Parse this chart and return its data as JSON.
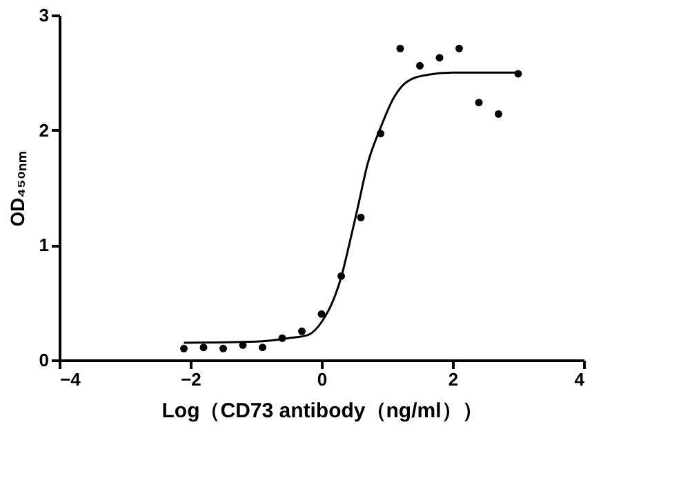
{
  "chart_data": {
    "type": "scatter",
    "xlabel": "Log（CD73 antibody（ng/ml））",
    "ylabel": "OD₄₅₀ₙₘ",
    "xlim": [
      -4,
      4
    ],
    "xticks": [
      -4,
      -2,
      0,
      2,
      4
    ],
    "ylim": [
      0,
      3
    ],
    "yticks": [
      0,
      1,
      2,
      3
    ],
    "grid": false,
    "marker": "circle",
    "series": [
      {
        "color": "#000000",
        "x": [
          -2.1,
          -1.8,
          -1.5,
          -1.2,
          -0.9,
          -0.6,
          -0.3,
          0.0,
          0.3,
          0.6,
          0.9,
          1.2,
          1.5,
          1.8,
          2.1,
          2.4,
          2.7,
          3.0
        ],
        "values": [
          0.1,
          0.11,
          0.1,
          0.13,
          0.11,
          0.19,
          0.25,
          0.4,
          0.73,
          1.24,
          1.97,
          2.71,
          2.56,
          2.63,
          2.71,
          2.24,
          2.14,
          2.49
        ]
      },
      {
        "type": "line",
        "color": "#000000",
        "marker": "none",
        "line_style": "solid",
        "x": [
          -2.1,
          -1.0,
          -0.5,
          -0.2,
          0.0,
          0.2,
          0.3,
          0.4,
          0.55,
          0.7,
          0.9,
          1.1,
          1.3,
          1.6,
          2.0,
          3.0
        ],
        "values": [
          0.15,
          0.16,
          0.19,
          0.22,
          0.33,
          0.55,
          0.72,
          0.95,
          1.32,
          1.7,
          2.02,
          2.28,
          2.42,
          2.48,
          2.5,
          2.5
        ]
      }
    ]
  }
}
